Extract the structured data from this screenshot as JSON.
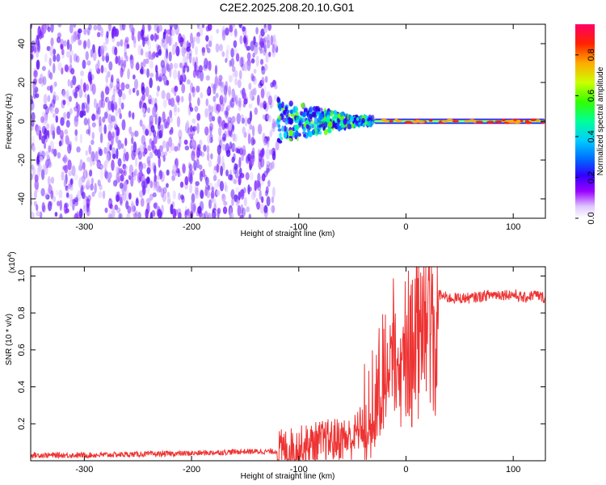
{
  "title": "C2E2.2025.208.20.10.G01",
  "chart_data": [
    {
      "type": "heatmap",
      "xlabel": "Height of straight line (km)",
      "ylabel": "Frequency (Hz)",
      "xlim": [
        -350,
        130
      ],
      "ylim": [
        -50,
        50
      ],
      "xticks": [
        -300,
        -200,
        -100,
        0,
        100
      ],
      "yticks": [
        -40,
        -20,
        0,
        20,
        40
      ],
      "colorbar": {
        "label": "Normalized spectral amplitude",
        "range": [
          0.0,
          0.95
        ],
        "ticks": [
          "0.0",
          "0.2",
          "0.4",
          "0.6",
          "0.8"
        ],
        "colors": [
          "#ffffff",
          "#9900ff",
          "#3300ff",
          "#0066ff",
          "#00ccff",
          "#00ff66",
          "#66ff00",
          "#ffff00",
          "#ff9900",
          "#ff0000",
          "#ff0066"
        ]
      },
      "regions": [
        {
          "x": [
            -350,
            -120
          ],
          "freq_spread": 50,
          "amplitude": 0.1
        },
        {
          "x": [
            -120,
            -30
          ],
          "freq_spread": 10,
          "amplitude": 0.35
        },
        {
          "x": [
            -30,
            130
          ],
          "freq_spread": 2,
          "amplitude": 0.8
        }
      ]
    },
    {
      "type": "line",
      "xlabel": "Height of straight line (km)",
      "ylabel": "SNR (10 * v/v)",
      "yscale_label": "(x10",
      "yscale_exp": "4",
      "xlim": [
        -350,
        130
      ],
      "ylim": [
        0,
        1.05
      ],
      "xticks": [
        -300,
        -200,
        -100,
        0,
        100
      ],
      "yticks": [
        "0.2",
        "0.4",
        "0.6",
        "0.8",
        "1.0"
      ],
      "line_color": "#ee3333",
      "series": [
        {
          "x": [
            -350,
            -300,
            -250,
            -200,
            -150,
            -120,
            -100,
            -80,
            -60,
            -50,
            -40,
            -30,
            -25,
            -20,
            -15,
            -10,
            -5,
            0,
            5,
            10,
            15,
            20,
            30,
            40,
            60,
            80,
            100,
            110,
            120,
            130
          ],
          "y": [
            0.03,
            0.03,
            0.035,
            0.04,
            0.05,
            0.05,
            0.07,
            0.1,
            0.12,
            0.12,
            0.2,
            0.3,
            0.4,
            0.55,
            0.62,
            0.7,
            0.72,
            0.75,
            0.8,
            0.85,
            0.9,
            0.92,
            0.9,
            0.88,
            0.88,
            0.9,
            0.9,
            0.88,
            0.9,
            0.88
          ]
        }
      ]
    }
  ]
}
